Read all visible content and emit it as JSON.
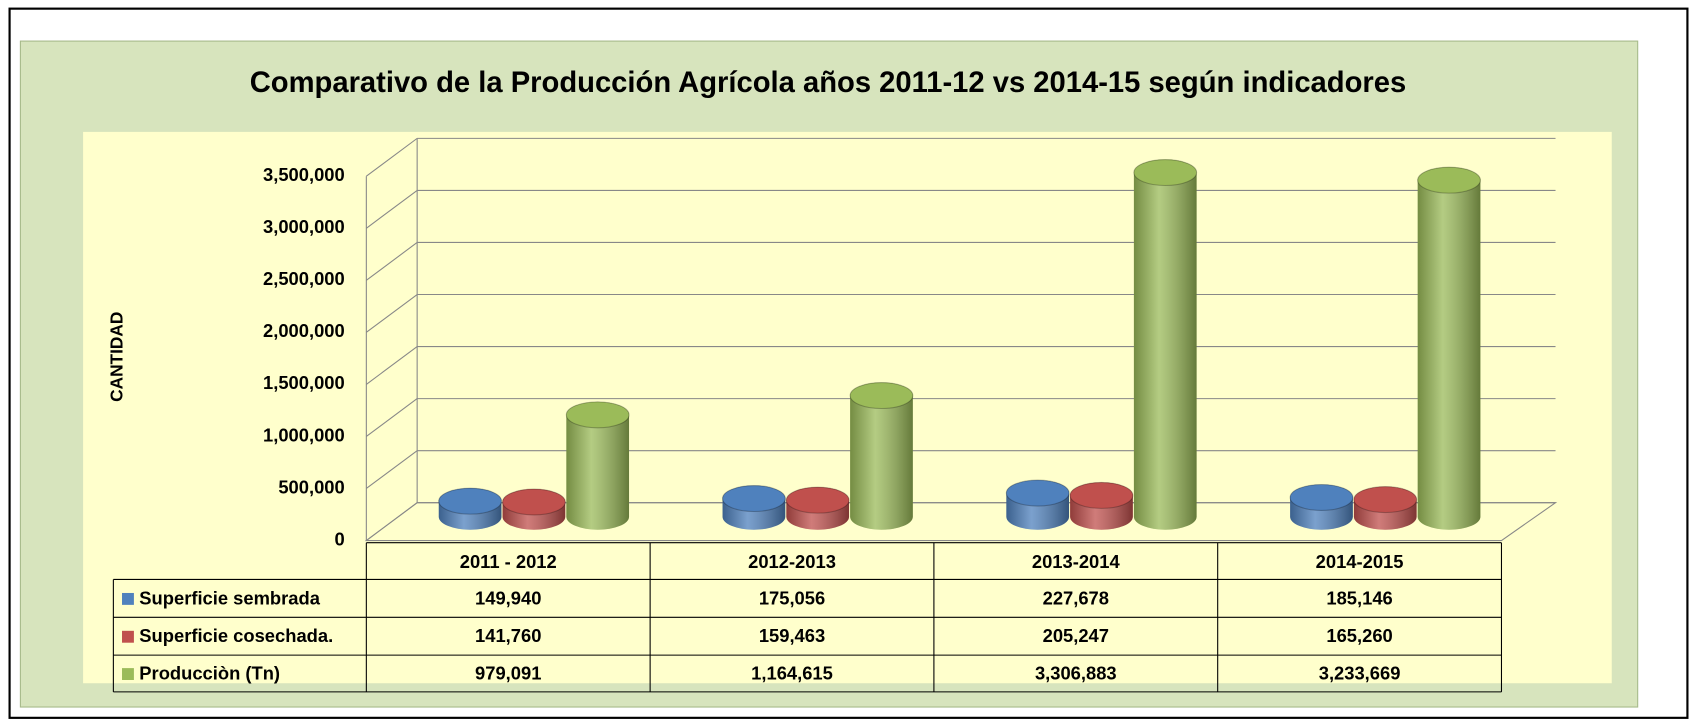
{
  "chart_data": {
    "type": "bar3d",
    "title": "Comparativo de la Producción Agrícola  años 2011-12 vs 2014-15  según indicadores",
    "y_label": "CANTIDAD",
    "categories": [
      "2011 - 2012",
      "2012-2013",
      "2013-2014",
      "2014-2015"
    ],
    "series": [
      {
        "name": "Superficie sembrada",
        "color": "#4f81bd",
        "values": [
          149940,
          175056,
          227678,
          185146
        ],
        "value_labels": [
          "149,940",
          "175,056",
          "227,678",
          "185,146"
        ]
      },
      {
        "name": "Superficie cosechada.",
        "color": "#c0504d",
        "values": [
          141760,
          159463,
          205247,
          165260
        ],
        "value_labels": [
          "141,760",
          "159,463",
          "205,247",
          "165,260"
        ]
      },
      {
        "name": "Producciòn (Tn)",
        "color": "#9bbb59",
        "values": [
          979091,
          1164615,
          3306883,
          3233669
        ],
        "value_labels": [
          "979,091",
          "1,164,615",
          "3,306,883",
          "3,233,669"
        ]
      }
    ],
    "ylim": [
      0,
      3500000
    ],
    "yticks": [
      0,
      {
        "value": 500000,
        "label": "500,000"
      },
      {
        "value": 1000000,
        "label": "1,000,000"
      },
      {
        "value": 1500000,
        "label": "1,500,000"
      },
      {
        "value": 2000000,
        "label": "2,000,000"
      },
      {
        "value": 2500000,
        "label": "2,500,000"
      },
      {
        "value": 3000000,
        "label": "3,000,000"
      },
      {
        "value": 3500000,
        "label": "3,500,000"
      }
    ],
    "grid": true
  }
}
